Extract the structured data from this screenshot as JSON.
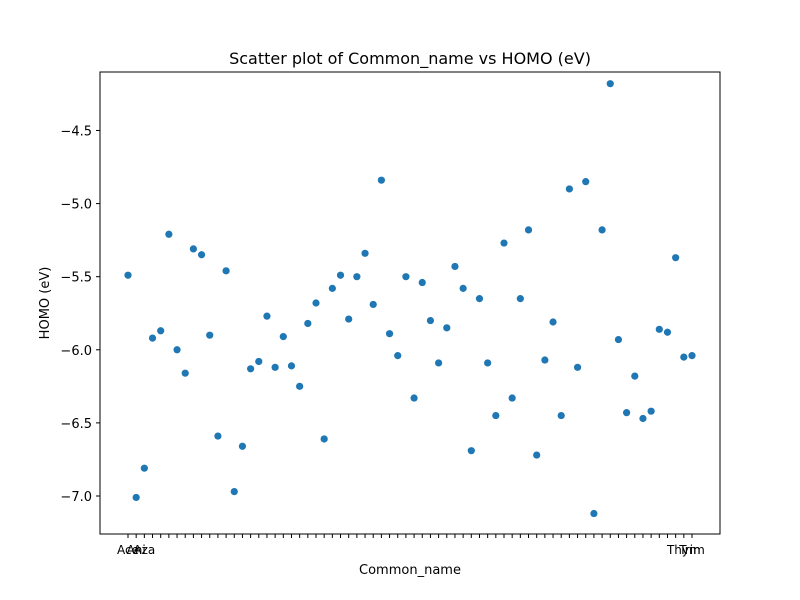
{
  "chart_data": {
    "type": "scatter",
    "title": "Scatter plot of Common_name vs HOMO (eV)",
    "xlabel": "Common_name",
    "ylabel": "HOMO (eV)",
    "ylim": [
      -7.26,
      -4.1
    ],
    "yticks": [
      -7.0,
      -6.5,
      -6.0,
      -5.5,
      -5.0,
      -4.5
    ],
    "ytick_labels": [
      "−7.0",
      "−6.5",
      "−6.0",
      "−5.5",
      "−5.0",
      "−4.5"
    ],
    "xtick_labels_visible": [
      "Ace",
      "Ani",
      "Aza"
    ],
    "xtick_labels_tail": [
      "",
      "Thym",
      "Trim"
    ],
    "grid": false,
    "legend": false,
    "color": "#1f77b4",
    "values": [
      -5.49,
      -7.01,
      -6.81,
      -5.92,
      -5.87,
      -5.21,
      -6.0,
      -6.16,
      -5.31,
      -5.35,
      -5.9,
      -6.59,
      -5.46,
      -6.97,
      -6.66,
      -6.13,
      -6.08,
      -5.77,
      -6.12,
      -5.91,
      -6.11,
      -6.25,
      -5.82,
      -5.68,
      -6.61,
      -5.58,
      -5.49,
      -5.79,
      -5.5,
      -5.34,
      -5.69,
      -4.84,
      -5.89,
      -6.04,
      -5.5,
      -6.33,
      -5.54,
      -5.8,
      -6.09,
      -5.85,
      -5.43,
      -5.58,
      -6.69,
      -5.65,
      -6.09,
      -6.45,
      -5.27,
      -6.33,
      -5.65,
      -5.18,
      -6.72,
      -6.07,
      -5.81,
      -6.45,
      -4.9,
      -6.12,
      -4.85,
      -7.12,
      -5.18,
      -4.18,
      -5.93,
      -6.43,
      -6.18,
      -6.47,
      -6.42,
      -5.86,
      -5.88,
      -5.37,
      -6.05,
      -6.04
    ]
  }
}
